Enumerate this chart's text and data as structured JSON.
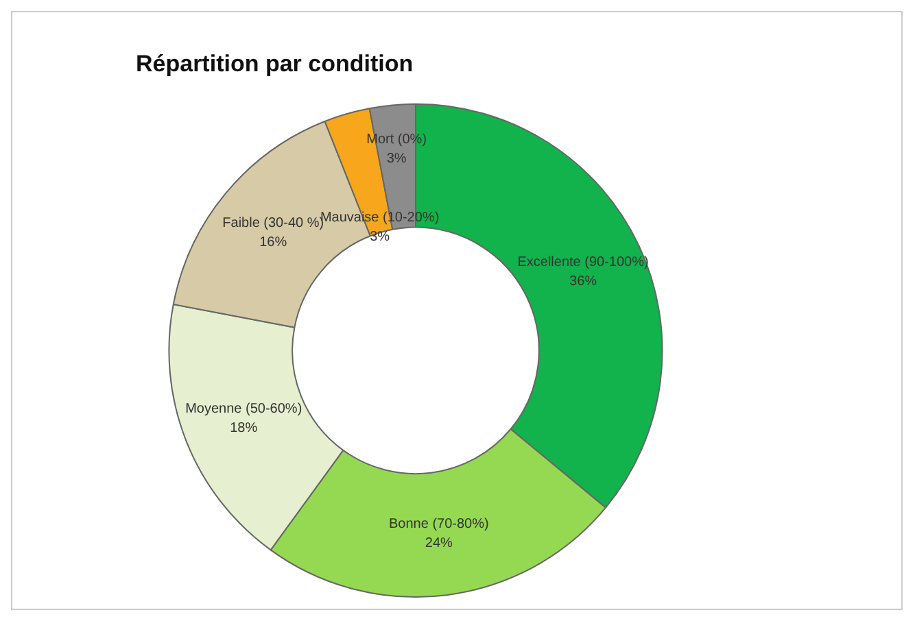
{
  "chart_data": {
    "type": "donut",
    "title": "Répartition par condition",
    "categories": [
      "Excellente (90-100%)",
      "Bonne (70-80%)",
      "Moyenne (50-60%)",
      "Faible (30-40 %)",
      "Mauvaise (10-20%)",
      "Mort (0%)"
    ],
    "values": [
      36,
      24,
      18,
      16,
      3,
      3
    ],
    "colors": [
      "#12b24c",
      "#95d952",
      "#e6efcf",
      "#d6cba6",
      "#f8a61c",
      "#8c8c8c"
    ],
    "value_labels": [
      "36%",
      "24%",
      "18%",
      "16%",
      "3%",
      "3%"
    ],
    "legend": false
  }
}
